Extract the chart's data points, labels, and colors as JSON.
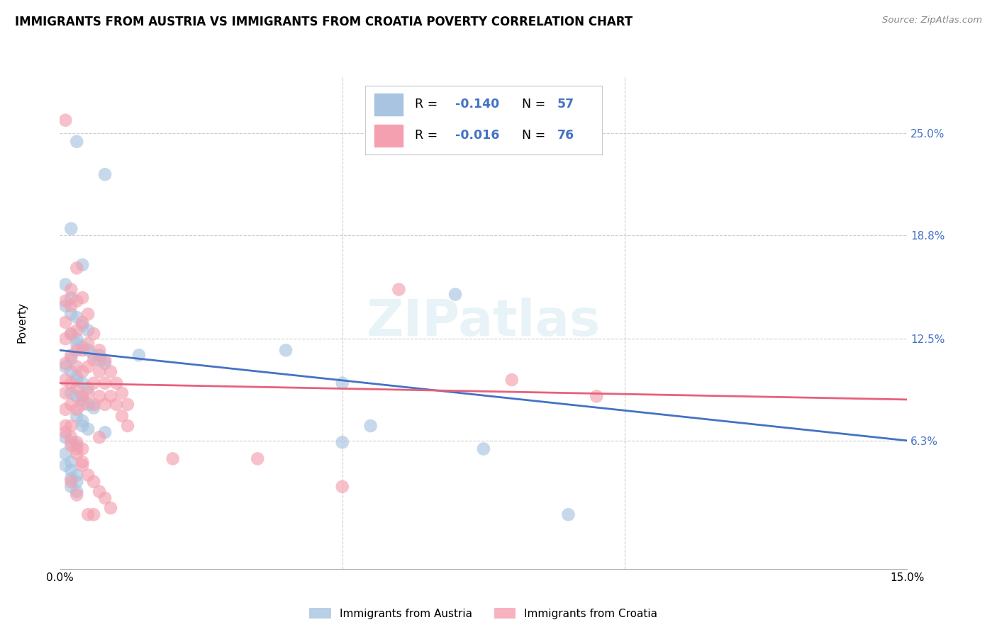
{
  "title": "IMMIGRANTS FROM AUSTRIA VS IMMIGRANTS FROM CROATIA POVERTY CORRELATION CHART",
  "source": "Source: ZipAtlas.com",
  "ylabel": "Poverty",
  "yticks": [
    "25.0%",
    "18.8%",
    "12.5%",
    "6.3%"
  ],
  "ytick_vals": [
    0.25,
    0.188,
    0.125,
    0.063
  ],
  "xmin": 0.0,
  "xmax": 0.15,
  "ymin": -0.015,
  "ymax": 0.285,
  "austria_R": "-0.140",
  "austria_N": "57",
  "croatia_R": "-0.016",
  "croatia_N": "76",
  "austria_color": "#a8c4e0",
  "croatia_color": "#f4a0b0",
  "austria_line_color": "#4472c4",
  "croatia_line_color": "#e8607a",
  "text_blue": "#4472c4",
  "background_color": "#ffffff",
  "grid_color": "#cccccc",
  "austria_line_start_y": 0.118,
  "austria_line_end_y": 0.063,
  "croatia_line_start_y": 0.098,
  "croatia_line_end_y": 0.088,
  "austria_x": [
    0.003,
    0.008,
    0.002,
    0.004,
    0.001,
    0.002,
    0.001,
    0.002,
    0.003,
    0.004,
    0.005,
    0.002,
    0.003,
    0.003,
    0.004,
    0.005,
    0.006,
    0.007,
    0.008,
    0.002,
    0.001,
    0.002,
    0.003,
    0.003,
    0.004,
    0.005,
    0.002,
    0.003,
    0.004,
    0.005,
    0.006,
    0.007,
    0.003,
    0.004,
    0.004,
    0.005,
    0.014,
    0.008,
    0.04,
    0.05,
    0.07,
    0.001,
    0.002,
    0.003,
    0.001,
    0.002,
    0.001,
    0.002,
    0.003,
    0.002,
    0.003,
    0.055,
    0.09,
    0.002,
    0.003,
    0.05,
    0.075
  ],
  "austria_y": [
    0.245,
    0.225,
    0.192,
    0.17,
    0.158,
    0.15,
    0.145,
    0.14,
    0.138,
    0.133,
    0.13,
    0.128,
    0.125,
    0.122,
    0.12,
    0.118,
    0.115,
    0.112,
    0.11,
    0.113,
    0.108,
    0.105,
    0.102,
    0.1,
    0.098,
    0.095,
    0.092,
    0.09,
    0.088,
    0.085,
    0.083,
    0.115,
    0.078,
    0.075,
    0.072,
    0.07,
    0.115,
    0.068,
    0.118,
    0.098,
    0.152,
    0.065,
    0.062,
    0.06,
    0.055,
    0.05,
    0.048,
    0.045,
    0.042,
    0.04,
    0.038,
    0.072,
    0.018,
    0.035,
    0.032,
    0.062,
    0.058
  ],
  "croatia_x": [
    0.001,
    0.001,
    0.001,
    0.001,
    0.001,
    0.001,
    0.001,
    0.001,
    0.001,
    0.002,
    0.002,
    0.002,
    0.002,
    0.002,
    0.002,
    0.002,
    0.003,
    0.003,
    0.003,
    0.003,
    0.003,
    0.003,
    0.003,
    0.004,
    0.004,
    0.004,
    0.004,
    0.004,
    0.005,
    0.005,
    0.005,
    0.005,
    0.006,
    0.006,
    0.006,
    0.006,
    0.007,
    0.007,
    0.007,
    0.008,
    0.008,
    0.008,
    0.009,
    0.009,
    0.01,
    0.01,
    0.011,
    0.011,
    0.012,
    0.012,
    0.001,
    0.002,
    0.003,
    0.004,
    0.005,
    0.006,
    0.007,
    0.008,
    0.009,
    0.002,
    0.003,
    0.004,
    0.002,
    0.003,
    0.02,
    0.035,
    0.05,
    0.06,
    0.08,
    0.095,
    0.004,
    0.003,
    0.004,
    0.005,
    0.006,
    0.007
  ],
  "croatia_y": [
    0.258,
    0.148,
    0.135,
    0.125,
    0.11,
    0.1,
    0.092,
    0.082,
    0.072,
    0.155,
    0.145,
    0.128,
    0.115,
    0.098,
    0.085,
    0.072,
    0.168,
    0.148,
    0.13,
    0.118,
    0.108,
    0.095,
    0.082,
    0.15,
    0.135,
    0.118,
    0.105,
    0.09,
    0.14,
    0.122,
    0.108,
    0.092,
    0.128,
    0.112,
    0.098,
    0.085,
    0.118,
    0.105,
    0.09,
    0.112,
    0.098,
    0.085,
    0.105,
    0.09,
    0.098,
    0.085,
    0.092,
    0.078,
    0.085,
    0.072,
    0.068,
    0.06,
    0.055,
    0.048,
    0.042,
    0.038,
    0.032,
    0.028,
    0.022,
    0.065,
    0.058,
    0.05,
    0.038,
    0.03,
    0.052,
    0.052,
    0.035,
    0.155,
    0.1,
    0.09,
    0.085,
    0.062,
    0.058,
    0.018,
    0.018,
    0.065
  ]
}
